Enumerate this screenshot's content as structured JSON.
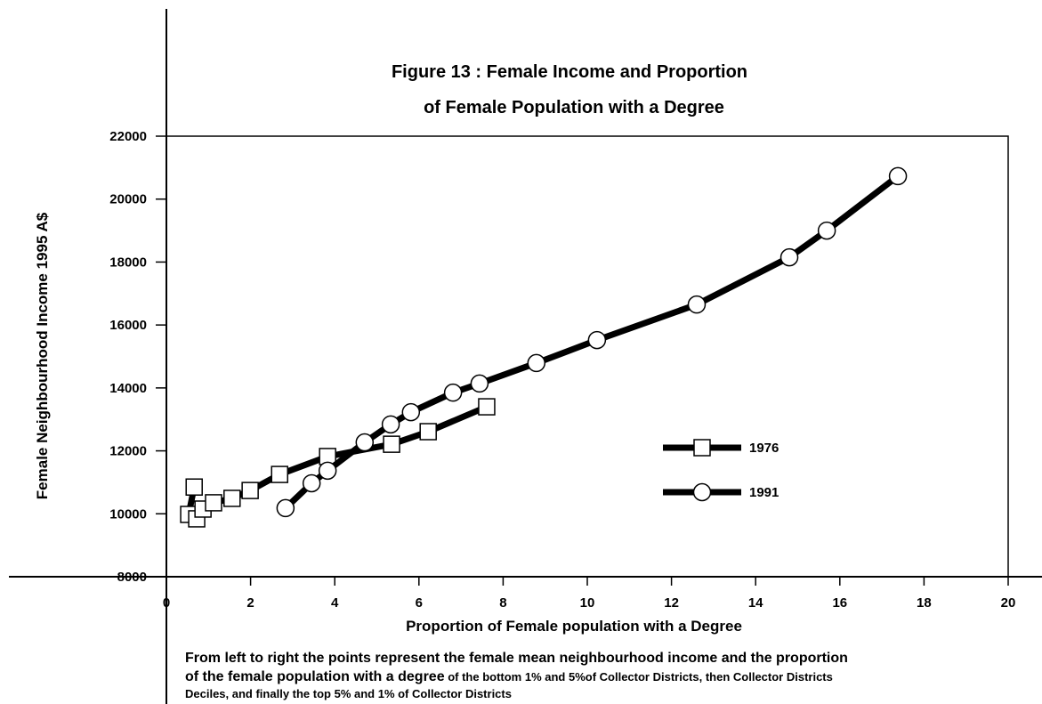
{
  "chart_data": {
    "type": "line",
    "title": [
      "Figure 13 : Female Income and Proportion",
      "of Female Population with a Degree"
    ],
    "xlabel": "Proportion of Female population with a Degree",
    "ylabel": "Female Neighbourhood Income 1995 A$",
    "caption": [
      [
        "From left to right the points represent the female mean neighbourhood income and the proportion"
      ],
      [
        "of the female population with a degree",
        " of the bottom 1% and 5%of Collector Districts, then Collector Districts"
      ],
      [
        "Deciles, and finally the top 5% and 1% of Collector Districts"
      ]
    ],
    "xlim": [
      0,
      20
    ],
    "ylim": [
      8000,
      22000
    ],
    "xticks": [
      0,
      2,
      4,
      6,
      8,
      10,
      12,
      14,
      16,
      18,
      20
    ],
    "yticks": [
      8000,
      10000,
      12000,
      14000,
      16000,
      18000,
      20000,
      22000
    ],
    "legend": "right",
    "series": [
      {
        "name": "1976",
        "color": "#000000",
        "marker": "square",
        "x": [
          0.66,
          0.53,
          0.72,
          0.87,
          1.12,
          1.56,
          1.99,
          2.69,
          3.83,
          5.35,
          6.22,
          7.61
        ],
        "values": [
          10850,
          9980,
          9840,
          10150,
          10350,
          10490,
          10740,
          11250,
          11820,
          12210,
          12610,
          13400
        ]
      },
      {
        "name": "1991",
        "color": "#000000",
        "marker": "circle",
        "x": [
          2.83,
          3.45,
          3.83,
          4.71,
          5.33,
          5.81,
          6.81,
          7.44,
          8.79,
          10.23,
          12.6,
          14.8,
          15.69,
          17.38
        ],
        "values": [
          10180,
          10970,
          11370,
          12270,
          12840,
          13230,
          13850,
          14140,
          14790,
          15520,
          16650,
          18150,
          19000,
          20730
        ]
      }
    ]
  }
}
